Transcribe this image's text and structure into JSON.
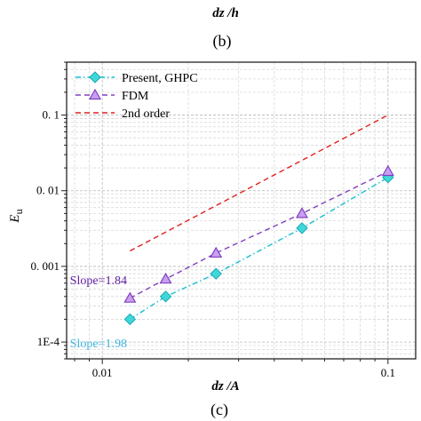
{
  "top_fragment": {
    "xlabel_main": "dz",
    "xlabel_sep": " /",
    "xlabel_denom": "h",
    "panel_label": "(b)"
  },
  "panel_label": "(c)",
  "chart_data": {
    "type": "line",
    "x_scale": "log",
    "y_scale": "log",
    "xlim": [
      0.0075,
      0.125
    ],
    "ylim": [
      6e-05,
      0.5
    ],
    "grid": true,
    "legend_placement": "top-left",
    "xlabel_main": "dz",
    "xlabel_sep": " /",
    "xlabel_denom": "A",
    "ylabel_main": "E",
    "ylabel_sub": "u",
    "xticks": [
      {
        "value": 0.01,
        "label": "0.01"
      },
      {
        "value": 0.1,
        "label": "0.1"
      }
    ],
    "yticks": [
      {
        "value": 0.1,
        "label": "0. 1"
      },
      {
        "value": 0.01,
        "label": "0. 01"
      },
      {
        "value": 0.001,
        "label": "0. 001"
      },
      {
        "value": 0.0001,
        "label": "1E-4"
      }
    ],
    "series": [
      {
        "name": "Present, GHPC",
        "color": "#17becf",
        "fill": "#3fd8d8",
        "marker": "diamond",
        "dash": "dashdot",
        "x": [
          0.0125,
          0.01667,
          0.025,
          0.05,
          0.1
        ],
        "y": [
          0.0002,
          0.0004,
          0.0008,
          0.0032,
          0.015
        ]
      },
      {
        "name": "FDM",
        "color": "#8040c0",
        "fill": "#c8a0f0",
        "marker": "triangle",
        "dash": "dashed",
        "x": [
          0.0125,
          0.01667,
          0.025,
          0.05,
          0.1
        ],
        "y": [
          0.00038,
          0.00068,
          0.0015,
          0.005,
          0.018
        ]
      },
      {
        "name": "2nd order",
        "color": "#e02020",
        "marker": "none",
        "dash": "dashed",
        "x": [
          0.0125,
          0.1
        ],
        "y": [
          0.0016,
          0.1
        ]
      }
    ],
    "annotations": [
      {
        "text": "Slope=1.84",
        "color": "#6020a0",
        "x": 0.0077,
        "y": 0.00058
      },
      {
        "text": "Slope=1.98",
        "color": "#40b8e0",
        "x": 0.0077,
        "y": 8.5e-05
      }
    ]
  }
}
